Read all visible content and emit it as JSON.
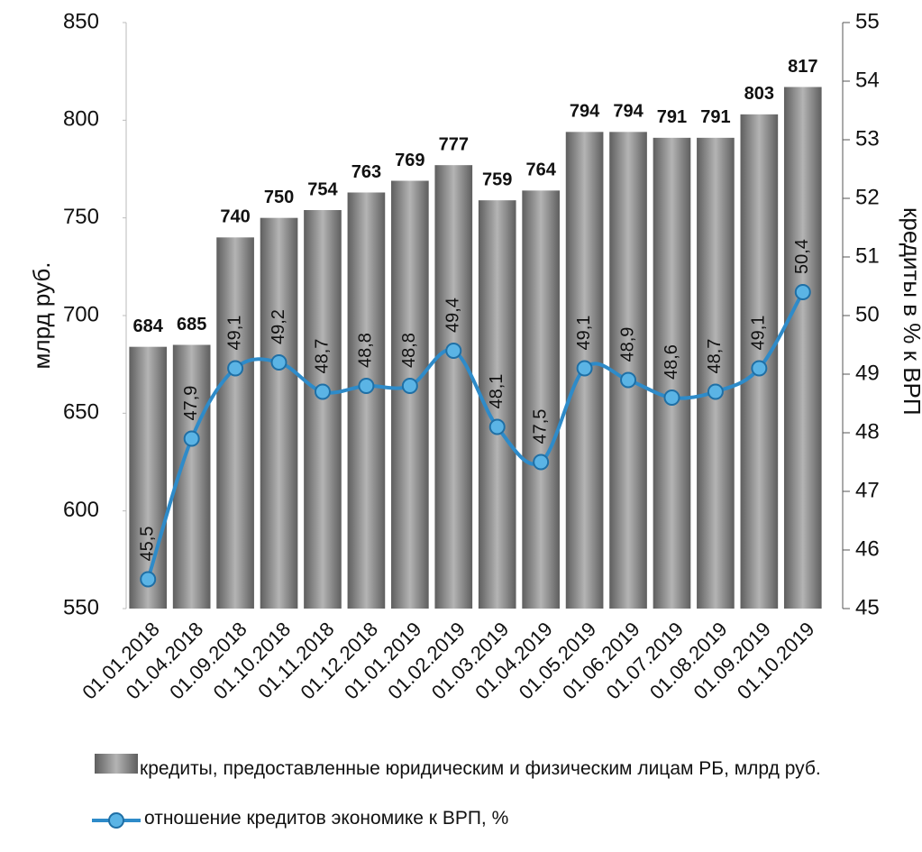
{
  "chart_data": {
    "type": "bar-line",
    "y_label": "млрд руб.",
    "y2_label": "кредиты в % к ВРП",
    "categories": [
      "01.01.2018",
      "01.04.2018",
      "01.09.2018",
      "01.10.2018",
      "01.11.2018",
      "01.12.2018",
      "01.01.2019",
      "01.02.2019",
      "01.03.2019",
      "01.04.2019",
      "01.05.2019",
      "01.06.2019",
      "01.07.2019",
      "01.08.2019",
      "01.09.2019",
      "01.10.2019"
    ],
    "series": [
      {
        "name": "кредиты, предоставленные юридическим и физическим лицам РБ, млрд руб.",
        "color": "#8c8c8c",
        "type": "bar",
        "values": [
          684,
          685,
          740,
          750,
          754,
          763,
          769,
          777,
          759,
          764,
          794,
          794,
          791,
          791,
          803,
          817
        ]
      },
      {
        "name": "отношение кредитов экономике к ВРП, %",
        "color": "#2e8bc9",
        "type": "line",
        "axis": "y2",
        "values": [
          45.5,
          47.9,
          49.1,
          49.2,
          48.7,
          48.8,
          48.8,
          49.4,
          48.1,
          47.5,
          49.1,
          48.9,
          48.6,
          48.7,
          49.1,
          50.4
        ],
        "value_labels": [
          "45,5",
          "47,9",
          "49,1",
          "49,2",
          "48,7",
          "48,8",
          "48,8",
          "49,4",
          "48,1",
          "47,5",
          "49,1",
          "48,9",
          "48,6",
          "48,7",
          "49,1",
          "50,4"
        ]
      }
    ],
    "ylim": [
      550,
      850
    ],
    "yticks": [
      550,
      600,
      650,
      700,
      750,
      800,
      850
    ],
    "y2lim": [
      45,
      55
    ],
    "y2ticks": [
      45,
      46,
      47,
      48,
      49,
      50,
      51,
      52,
      53,
      54,
      55
    ]
  }
}
